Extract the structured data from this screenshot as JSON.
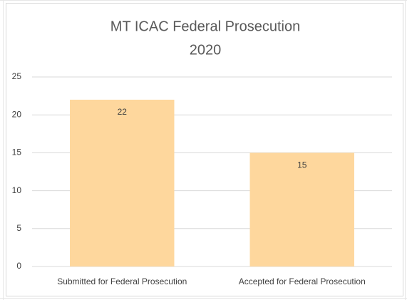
{
  "chart_data": {
    "type": "bar",
    "title": "MT ICAC Federal Prosecution",
    "subtitle": "2020",
    "categories": [
      "Submitted for Federal Prosecution",
      "Accepted for Federal Prosecution"
    ],
    "values": [
      22,
      15
    ],
    "color": "#fed79d",
    "ylim": [
      0,
      25
    ],
    "yticks": [
      0,
      5,
      10,
      15,
      20,
      25
    ],
    "grid": true
  }
}
